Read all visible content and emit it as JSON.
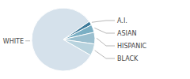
{
  "chart_data": {
    "type": "pie",
    "categories": [
      "WHITE",
      "A.I.",
      "ASIAN",
      "HISPANIC",
      "BLACK"
    ],
    "values": [
      82,
      2,
      4,
      6,
      6
    ],
    "colors": [
      "#d5e1eb",
      "#3d7a9a",
      "#7aafc4",
      "#9abfcf",
      "#b8d3de"
    ]
  }
}
